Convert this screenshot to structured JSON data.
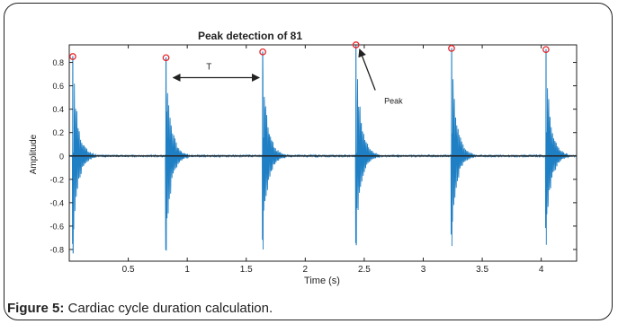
{
  "figure": {
    "label": "Figure 5:",
    "text": "Cardiac cycle duration calculation."
  },
  "chart_data": {
    "type": "line",
    "title": "Peak detection of 81",
    "xlabel": "Time (s)",
    "ylabel": "Amplitude",
    "xlim": [
      0,
      4.3
    ],
    "ylim": [
      -0.9,
      0.95
    ],
    "xticks": [
      0.5,
      1,
      1.5,
      2,
      2.5,
      3,
      3.5,
      4
    ],
    "xtick_labels": [
      "0.5",
      "1",
      "1.5",
      "2",
      "2.5",
      "3",
      "3.5",
      "4"
    ],
    "yticks": [
      -0.8,
      -0.6,
      -0.4,
      -0.2,
      0,
      0.2,
      0.4,
      0.6,
      0.8
    ],
    "ytick_labels": [
      "-0.8",
      "-0.6",
      "-0.4",
      "-0.2",
      "0",
      "0.2",
      "0.4",
      "0.6",
      "0.8"
    ],
    "grid": false,
    "peaks": {
      "t": [
        0.03,
        0.82,
        1.64,
        2.43,
        3.24,
        4.04
      ],
      "amplitude": [
        0.85,
        0.84,
        0.89,
        0.95,
        0.92,
        0.91
      ],
      "min_amplitude": [
        -0.83,
        -0.81,
        -0.8,
        -0.76,
        -0.77,
        -0.76
      ]
    },
    "annotations": [
      {
        "text": "T",
        "type": "interval-arrow",
        "from_t": 0.82,
        "to_t": 1.64,
        "y": 0.67
      },
      {
        "text": "Peak",
        "type": "pointer-arrow",
        "target_t": 2.43,
        "target_y": 0.95,
        "label_t": 2.7,
        "label_y": 0.47
      }
    ],
    "colors": {
      "signal": "#1f7fc4",
      "peak_marker": "#e8262a",
      "axis": "#222222"
    }
  }
}
